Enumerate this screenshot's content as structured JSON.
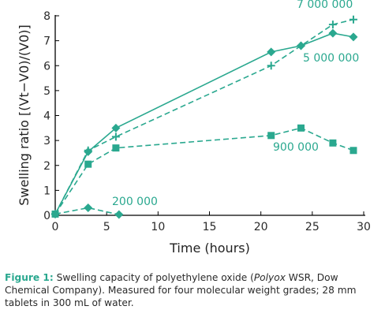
{
  "chart_data": {
    "type": "line",
    "xlabel": "Time (hours)",
    "ylabel": "Swelling ratio [(Vt−V0)/(V0)]",
    "xlim": [
      0,
      30
    ],
    "ylim": [
      0,
      8
    ],
    "xticks": [
      "0",
      "5",
      "10",
      "15",
      "20",
      "25",
      "30"
    ],
    "yticks": [
      "0",
      "1",
      "2",
      "3",
      "4",
      "5",
      "6",
      "7",
      "8"
    ],
    "grid": false,
    "color": "#2aa88f",
    "series": [
      {
        "name": "7 000 000",
        "marker": "plus",
        "line": "dashed",
        "x": [
          0,
          3.2,
          5.9,
          21,
          23.9,
          27,
          29
        ],
        "y": [
          0.05,
          2.6,
          3.15,
          6.0,
          6.8,
          7.65,
          7.85
        ]
      },
      {
        "name": "5 000 000",
        "marker": "diamond",
        "line": "solid",
        "x": [
          0,
          3.2,
          5.9,
          21,
          23.9,
          27,
          29
        ],
        "y": [
          0.05,
          2.55,
          3.5,
          6.55,
          6.8,
          7.3,
          7.15
        ]
      },
      {
        "name": "900 000",
        "marker": "square",
        "line": "dashed",
        "x": [
          0,
          3.2,
          5.9,
          21,
          23.9,
          27,
          29
        ],
        "y": [
          0.05,
          2.05,
          2.7,
          3.2,
          3.5,
          2.9,
          2.6
        ]
      },
      {
        "name": "200 000",
        "marker": "diamond",
        "line": "dashed",
        "x": [
          0,
          3.2,
          6.2
        ],
        "y": [
          0.05,
          0.3,
          0.03
        ]
      }
    ],
    "caption": {
      "label": "Figure 1:",
      "text_before": " Swelling capacity of polyethylene oxide (",
      "text_italic": "Polyox",
      "text_after": " WSR, Dow Chemical Company). Measured for four molecular weight grades; 28 mm tablets in 300 mL of water."
    }
  }
}
